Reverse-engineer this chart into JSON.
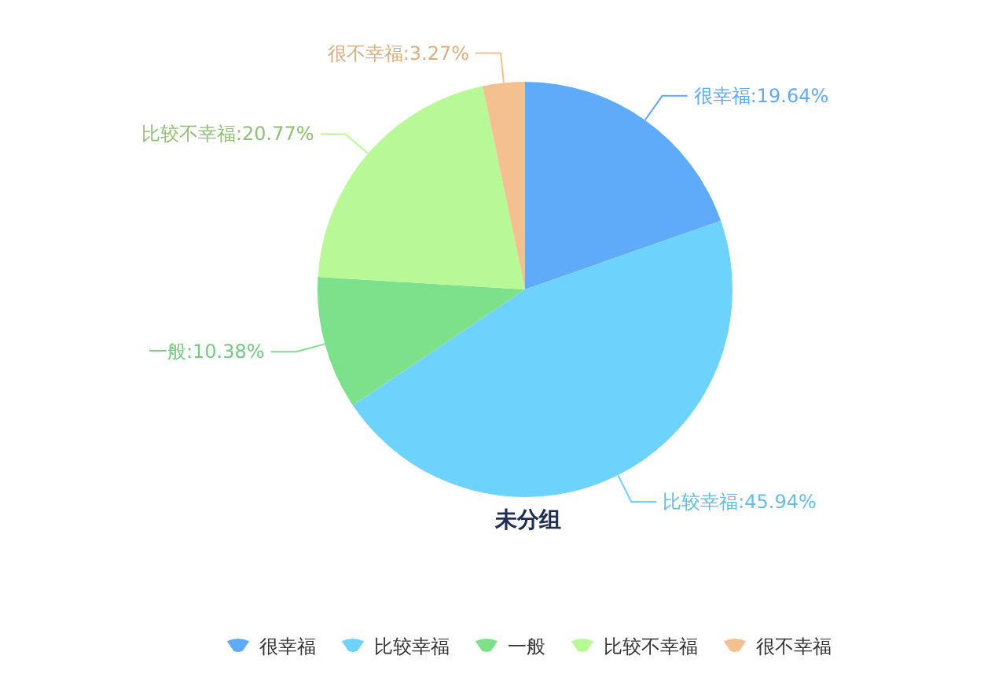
{
  "chart_data": {
    "type": "pie",
    "title": "未分组",
    "categories": [
      "很幸福",
      "比较幸福",
      "一般",
      "比较不幸福",
      "很不幸福"
    ],
    "values": [
      19.64,
      45.94,
      10.38,
      20.77,
      3.27
    ],
    "colors": [
      "#5fabfa",
      "#6dd3fd",
      "#7de08b",
      "#b9f896",
      "#f4c08f"
    ],
    "value_labels": [
      "很幸福:19.64%",
      "比较幸福:45.94%",
      "一般:10.38%",
      "比较不幸福:20.77%",
      "很不幸福:3.27%"
    ],
    "legend": "bottom"
  }
}
